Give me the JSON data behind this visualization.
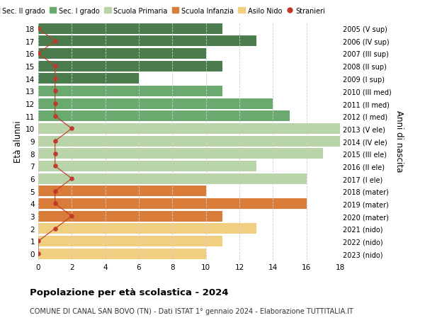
{
  "ages": [
    18,
    17,
    16,
    15,
    14,
    13,
    12,
    11,
    10,
    9,
    8,
    7,
    6,
    5,
    4,
    3,
    2,
    1,
    0
  ],
  "years": [
    "2005 (V sup)",
    "2006 (IV sup)",
    "2007 (III sup)",
    "2008 (II sup)",
    "2009 (I sup)",
    "2010 (III med)",
    "2011 (II med)",
    "2012 (I med)",
    "2013 (V ele)",
    "2014 (IV ele)",
    "2015 (III ele)",
    "2016 (II ele)",
    "2017 (I ele)",
    "2018 (mater)",
    "2019 (mater)",
    "2020 (mater)",
    "2021 (nido)",
    "2022 (nido)",
    "2023 (nido)"
  ],
  "values": [
    11,
    13,
    10,
    11,
    6,
    11,
    14,
    15,
    18,
    18,
    17,
    13,
    16,
    10,
    16,
    11,
    13,
    11,
    10
  ],
  "stranieri": [
    0,
    1,
    0,
    1,
    1,
    1,
    1,
    1,
    2,
    1,
    1,
    1,
    2,
    1,
    1,
    2,
    1,
    0,
    0
  ],
  "bar_colors": [
    "#4a7c4e",
    "#4a7c4e",
    "#4a7c4e",
    "#4a7c4e",
    "#4a7c4e",
    "#6aaa6e",
    "#6aaa6e",
    "#6aaa6e",
    "#b8d4a8",
    "#b8d4a8",
    "#b8d4a8",
    "#b8d4a8",
    "#b8d4a8",
    "#d97c3a",
    "#d97c3a",
    "#d97c3a",
    "#f0d080",
    "#f0d080",
    "#f0d080"
  ],
  "color_sec2": "#4a7c4e",
  "color_sec1": "#6aaa6e",
  "color_prim": "#b8d4a8",
  "color_inf": "#d97c3a",
  "color_nido": "#f0d080",
  "color_stranieri": "#c0392b",
  "legend_labels": [
    "Sec. II grado",
    "Sec. I grado",
    "Scuola Primaria",
    "Scuola Infanzia",
    "Asilo Nido",
    "Stranieri"
  ],
  "xlabel": "Età alunni",
  "ylabel_right": "Anni di nascita",
  "title": "Popolazione per età scolastica - 2024",
  "subtitle": "COMUNE DI CANAL SAN BOVO (TN) - Dati ISTAT 1° gennaio 2024 - Elaborazione TUTTITALIA.IT",
  "xlim": [
    0,
    18
  ],
  "background_color": "#ffffff",
  "grid_color": "#cccccc"
}
